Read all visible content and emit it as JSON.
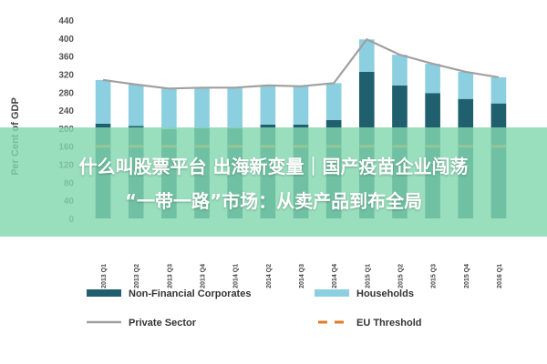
{
  "chart_data": {
    "type": "bar",
    "stacked": true,
    "ylabel": "Per Cent of GDP",
    "ylim": [
      0,
      440
    ],
    "yticks": [
      0,
      40,
      80,
      120,
      160,
      200,
      240,
      280,
      320,
      360,
      400,
      440
    ],
    "categories": [
      "2013 Q1",
      "2013 Q2",
      "2013 Q3",
      "2013 Q4",
      "2014 Q1",
      "2014 Q2",
      "2014 Q3",
      "2014 Q4",
      "2015 Q1",
      "2015 Q2",
      "2015 Q3",
      "2015 Q4",
      "2016 Q1"
    ],
    "series": [
      {
        "name": "Non-Financial Corporates",
        "kind": "bar",
        "color": "#1f5f6e",
        "values": [
          210,
          205,
          198,
          200,
          200,
          208,
          208,
          218,
          325,
          295,
          278,
          265,
          255
        ]
      },
      {
        "name": "Households",
        "kind": "bar",
        "color": "#8ccfe0",
        "values": [
          97,
          92,
          90,
          90,
          90,
          87,
          85,
          82,
          72,
          68,
          65,
          60,
          58
        ]
      },
      {
        "name": "Private Sector",
        "kind": "line",
        "color": "#a0a0a0",
        "values": [
          307,
          297,
          288,
          290,
          290,
          295,
          293,
          300,
          397,
          363,
          343,
          325,
          313
        ]
      },
      {
        "name": "EU Threshold",
        "kind": "dashed-line",
        "color": "#e07b2a",
        "values": [
          160,
          160,
          160,
          160,
          160,
          160,
          160,
          160,
          160,
          160,
          160,
          160,
          160
        ]
      }
    ],
    "legend_position": "bottom",
    "grid": false
  },
  "overlay": {
    "line1": "什么叫股票平台 出海新变量｜国产疫苗企业闯荡",
    "line2": "“一带一路”市场：从卖产品到布全局"
  }
}
